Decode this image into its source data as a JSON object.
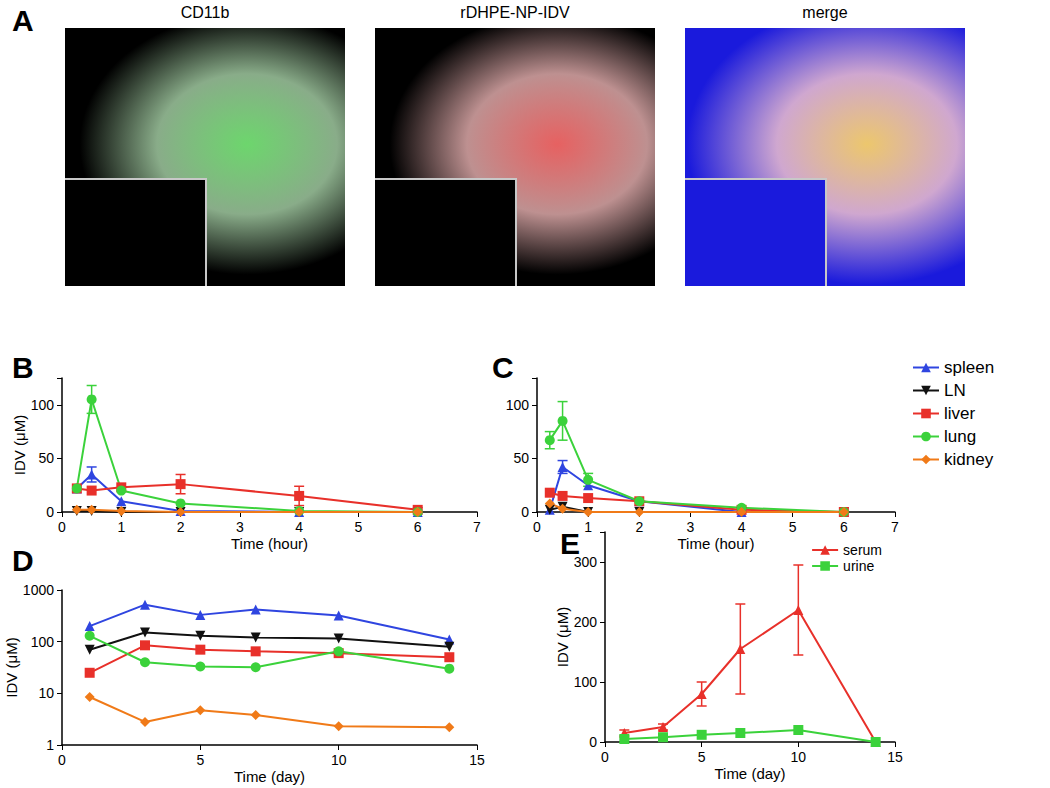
{
  "images": {
    "panel": "A",
    "titles": [
      "CD11b",
      "rDHPE-NP-IDV",
      "merge"
    ]
  },
  "chart_data": [
    {
      "panel": "B",
      "type": "line",
      "x_label": "Time (hour)",
      "y_label": "IDV (μM)",
      "xlim": [
        0,
        7
      ],
      "xticks": [
        0,
        1,
        2,
        3,
        4,
        5,
        6,
        7
      ],
      "ylim": [
        0,
        125
      ],
      "yticks": [
        0,
        50,
        100
      ],
      "grid": false,
      "x": [
        0.25,
        0.5,
        1,
        2,
        4,
        6
      ],
      "series": [
        {
          "name": "spleen",
          "color": "#2f45e0",
          "marker": "triangle",
          "values": [
            22,
            35,
            10,
            1,
            0,
            0
          ],
          "errors": [
            null,
            7,
            null,
            null,
            null,
            null
          ]
        },
        {
          "name": "LN",
          "color": "#111111",
          "marker": "triangle_down",
          "values": [
            1,
            1,
            0,
            0,
            0,
            0
          ],
          "errors": [
            null,
            null,
            null,
            null,
            null,
            null
          ]
        },
        {
          "name": "liver",
          "color": "#e8302a",
          "marker": "square",
          "values": [
            22,
            20,
            23,
            26,
            15,
            2
          ],
          "errors": [
            null,
            null,
            null,
            9,
            9,
            null
          ]
        },
        {
          "name": "lung",
          "color": "#3bd23b",
          "marker": "circle",
          "values": [
            22,
            105,
            20,
            8,
            1,
            0
          ],
          "errors": [
            null,
            13,
            null,
            null,
            null,
            null
          ]
        },
        {
          "name": "kidney",
          "color": "#f07a18",
          "marker": "diamond",
          "values": [
            2,
            2,
            1,
            0,
            0,
            0
          ],
          "errors": [
            null,
            null,
            null,
            null,
            null,
            null
          ]
        }
      ]
    },
    {
      "panel": "C",
      "type": "line",
      "y_label": "",
      "xlim": [
        0,
        7
      ],
      "xticks": [
        0,
        1,
        2,
        3,
        4,
        5,
        6,
        7
      ],
      "ylim": [
        0,
        125
      ],
      "yticks": [
        0,
        50,
        100
      ],
      "grid": false,
      "legend": "right",
      "x_label": "Time (hour)",
      "x": [
        0.25,
        0.5,
        1,
        2,
        4,
        6
      ],
      "series": [
        {
          "name": "spleen",
          "color": "#2f45e0",
          "marker": "triangle",
          "values": [
            2,
            42,
            25,
            10,
            0,
            0
          ],
          "errors": [
            null,
            6,
            null,
            null,
            null,
            null
          ]
        },
        {
          "name": "LN",
          "color": "#111111",
          "marker": "triangle_down",
          "values": [
            2,
            5,
            0,
            0,
            0,
            0
          ],
          "errors": [
            null,
            null,
            null,
            null,
            null,
            null
          ]
        },
        {
          "name": "liver",
          "color": "#e8302a",
          "marker": "square",
          "values": [
            18,
            15,
            13,
            10,
            2,
            0
          ],
          "errors": [
            null,
            null,
            null,
            null,
            null,
            null
          ]
        },
        {
          "name": "lung",
          "color": "#3bd23b",
          "marker": "circle",
          "values": [
            67,
            85,
            30,
            10,
            4,
            0
          ],
          "errors": [
            8,
            18,
            6,
            null,
            null,
            null
          ]
        },
        {
          "name": "kidney",
          "color": "#f07a18",
          "marker": "diamond",
          "values": [
            8,
            3,
            0,
            0,
            0,
            0
          ],
          "errors": [
            null,
            null,
            null,
            null,
            null,
            null
          ]
        }
      ]
    },
    {
      "panel": "D",
      "type": "line",
      "x_label": "Time (day)",
      "y_label": "IDV (μM)",
      "xlim": [
        0,
        15
      ],
      "xticks": [
        0,
        5,
        10,
        15
      ],
      "ylim": [
        1,
        1000
      ],
      "yticks": [
        1,
        10,
        100,
        1000
      ],
      "log": "y",
      "grid": false,
      "x": [
        1,
        3,
        5,
        7,
        10,
        14
      ],
      "series": [
        {
          "name": "spleen",
          "color": "#2f45e0",
          "marker": "triangle",
          "values": [
            200,
            520,
            330,
            420,
            320,
            110
          ]
        },
        {
          "name": "LN",
          "color": "#111111",
          "marker": "triangle_down",
          "values": [
            70,
            150,
            130,
            120,
            115,
            80
          ]
        },
        {
          "name": "liver",
          "color": "#e8302a",
          "marker": "square",
          "values": [
            25,
            85,
            70,
            65,
            60,
            50
          ]
        },
        {
          "name": "lung",
          "color": "#3bd23b",
          "marker": "circle",
          "values": [
            130,
            40,
            33,
            32,
            65,
            30
          ]
        },
        {
          "name": "kidney",
          "color": "#f07a18",
          "marker": "diamond",
          "values": [
            8.5,
            2.8,
            4.7,
            3.8,
            2.3,
            2.2
          ]
        }
      ]
    },
    {
      "panel": "E",
      "type": "line",
      "x_label": "Time (day)",
      "y_label": "IDV (μM)",
      "xlim": [
        0,
        15
      ],
      "xticks": [
        0,
        5,
        10,
        15
      ],
      "ylim": [
        0,
        350
      ],
      "yticks": [
        0,
        100,
        200,
        300
      ],
      "grid": false,
      "legend": "upper right",
      "x": [
        1,
        3,
        5,
        7,
        10,
        14
      ],
      "series": [
        {
          "name": "serum",
          "color": "#e8302a",
          "marker": "triangle",
          "values": [
            15,
            25,
            80,
            155,
            220,
            0
          ],
          "errors": [
            5,
            5,
            20,
            75,
            75,
            null
          ]
        },
        {
          "name": "urine",
          "color": "#3bd23b",
          "marker": "square",
          "values": [
            5,
            8,
            12,
            15,
            20,
            0
          ],
          "errors": [
            null,
            null,
            null,
            null,
            null,
            null
          ]
        }
      ]
    }
  ]
}
